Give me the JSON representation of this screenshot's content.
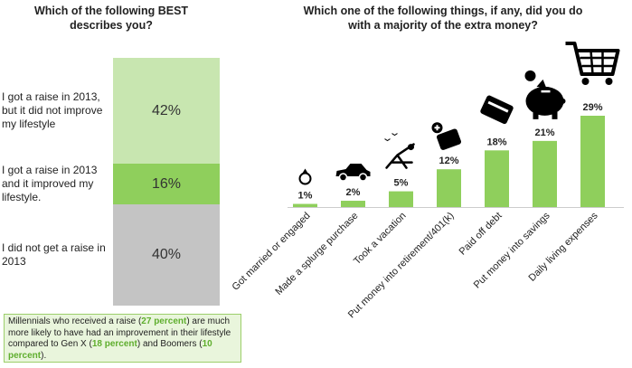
{
  "left": {
    "title_line1": "Which of the following BEST",
    "title_line2": "describes you?",
    "segments": [
      {
        "label": "I got a raise in 2013, but it did not improve my lifestyle",
        "value": 42,
        "value_label": "42%",
        "color": "#c8e6b0"
      },
      {
        "label": "I got a raise in 2013 and it improved my lifestyle.",
        "value": 16,
        "value_label": "16%",
        "color": "#8fcf5c"
      },
      {
        "label": "I did not get a raise in 2013",
        "value": 40,
        "value_label": "40%",
        "color": "#c4c4c4"
      }
    ]
  },
  "note": {
    "part1": "Millennials who received a raise (",
    "hl1": "27 percent",
    "part2": ") are much more likely to have had an improvement in their lifestyle compared to Gen X (",
    "hl2": "18 percent",
    "part3": ") and Boomers (",
    "hl3": "10 percent",
    "part4": ").",
    "highlight_color": "#5fae2e"
  },
  "chart_data": [
    {
      "type": "bar",
      "orientation": "stacked-vertical",
      "title": "Which of the following BEST describes you?",
      "categories": [
        "I got a raise in 2013, but it did not improve my lifestyle",
        "I got a raise in 2013 and it improved my lifestyle.",
        "I did not get a raise in 2013"
      ],
      "values": [
        42,
        16,
        40
      ]
    },
    {
      "type": "bar",
      "title": "Which one of the following things, if any, did you do with a majority of the extra money?",
      "categories": [
        "Got married or engaged",
        "Made a splurge purchase",
        "Took a vacation",
        "Put money into retirement/401(k)",
        "Paid off debt",
        "Put money into savings",
        "Daily living expenses"
      ],
      "values": [
        1,
        2,
        5,
        12,
        18,
        21,
        29
      ],
      "value_labels": [
        "1%",
        "2%",
        "5%",
        "12%",
        "18%",
        "21%",
        "29%"
      ],
      "icons": [
        "ring-icon",
        "car-icon",
        "beach-chair-icon",
        "medical-kit-icon",
        "credit-card-icon",
        "piggy-bank-icon",
        "shopping-cart-icon"
      ],
      "bar_color": "#8fcf5c",
      "ylim": [
        0,
        29
      ]
    }
  ]
}
